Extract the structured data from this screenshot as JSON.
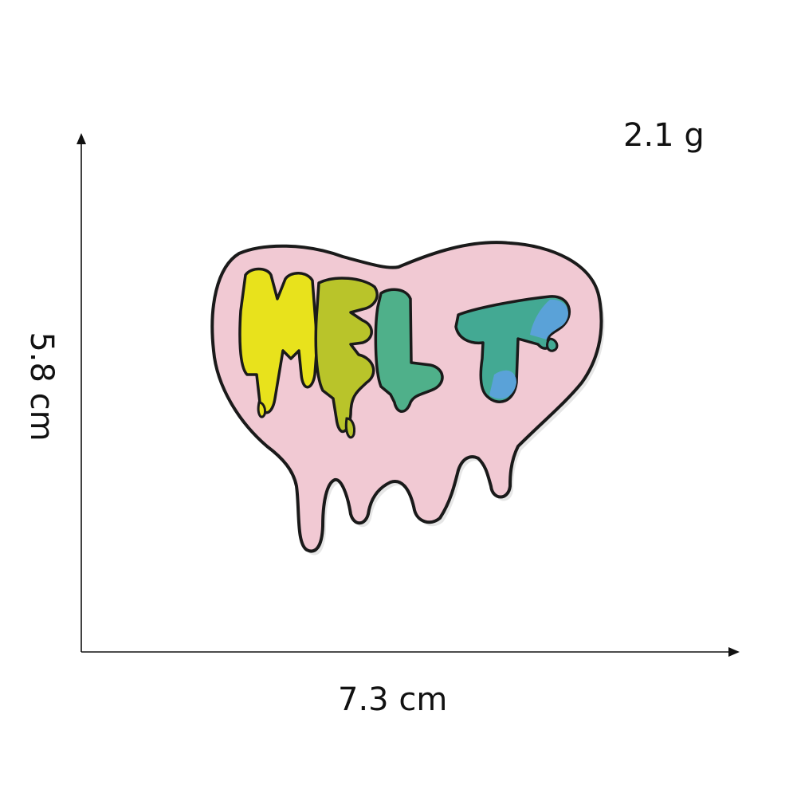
{
  "dimensions": {
    "weight": "2.1 g",
    "height": "5.8 cm",
    "width": "7.3 cm"
  },
  "patch": {
    "text": "MELT",
    "colors": {
      "outline": "#1a1a1a",
      "heart": "#f1c9d3",
      "letter_yellow": "#e8e21c",
      "letter_olive": "#b9c42a",
      "letter_green": "#4fb08a",
      "letter_teal": "#43a993",
      "letter_blue": "#5aa2d8",
      "backing_shadow": "#e6e6e6"
    }
  },
  "axis_color": "#111111"
}
